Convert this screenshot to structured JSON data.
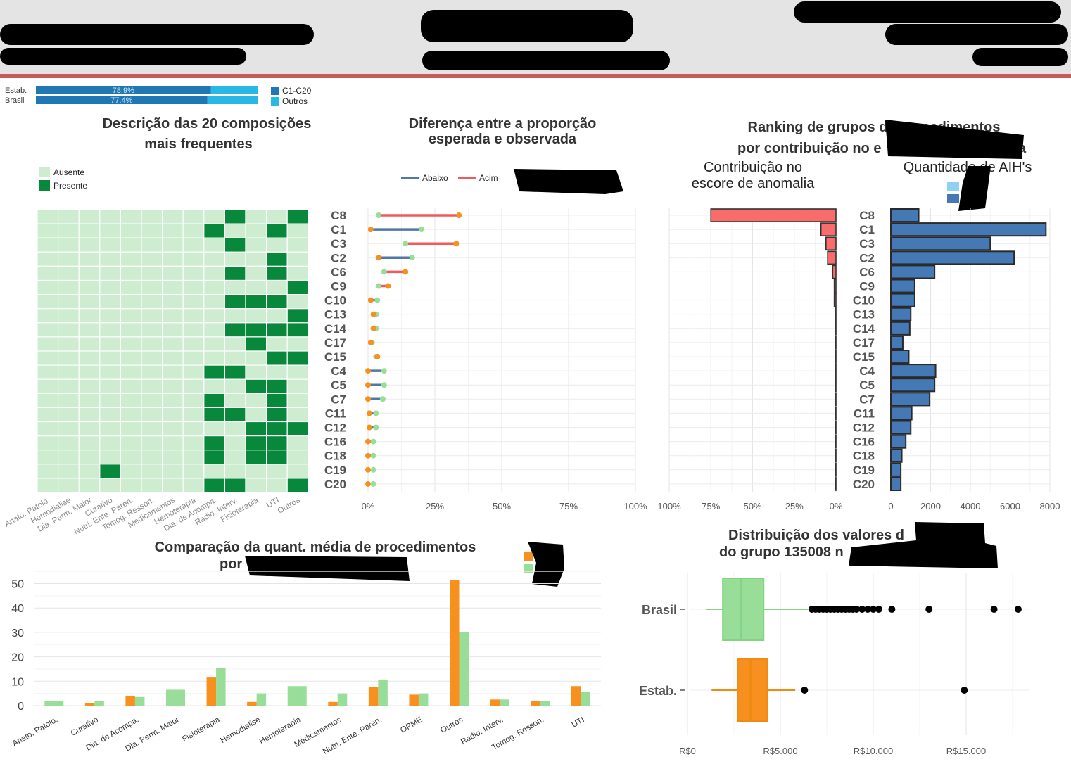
{
  "colors": {
    "header_bg": "#e4e4e4",
    "accent_line": "#c85a5e",
    "estab": "#f7901e",
    "brasil": "#98de98",
    "abaixo": "#4f78a8",
    "acima": "#f15a5a",
    "absent": "#cdecd0",
    "present": "#07883a",
    "share_c1c20": "#1f78b4",
    "share_outros": "#29b8e6",
    "aih_bar": "#4479b5",
    "anomaly_bar": "#f86c6c"
  },
  "share": {
    "rows": [
      {
        "label": "Estab.",
        "value": 78.9,
        "text": "78.9%"
      },
      {
        "label": "Brasil",
        "value": 77.4,
        "text": "77.4%"
      }
    ],
    "legend": [
      "C1-C20",
      "Outros"
    ]
  },
  "compositions": {
    "title": [
      "Descrição das 20 composições",
      "mais frequentes"
    ],
    "legend": [
      "Ausente",
      "Presente"
    ],
    "rows": [
      "C8",
      "C1",
      "C3",
      "C2",
      "C6",
      "C9",
      "C10",
      "C13",
      "C14",
      "C17",
      "C15",
      "C4",
      "C5",
      "C7",
      "C11",
      "C12",
      "C16",
      "C18",
      "C19",
      "C20"
    ],
    "columns": [
      "Anato. Patolo.",
      "Hemodialise",
      "Dia. Perm. Maior",
      "Curativo",
      "Nutri. Ente. Paren.",
      "Tomog. Resson.",
      "Medicamentos",
      "Hemoterapia",
      "Dia. de Acompa.",
      "Radio. Interv.",
      "Fisioterapia",
      "UTI",
      "Outros"
    ],
    "present": [
      [
        9,
        12
      ],
      [
        8,
        11
      ],
      [
        9
      ],
      [
        11
      ],
      [
        9,
        11
      ],
      [
        12
      ],
      [
        9,
        10,
        11
      ],
      [
        12
      ],
      [
        9,
        10,
        11,
        12
      ],
      [
        10
      ],
      [
        11,
        12
      ],
      [
        8,
        9
      ],
      [
        10,
        11
      ],
      [
        8,
        11
      ],
      [
        8,
        9,
        11
      ],
      [
        10,
        11,
        12
      ],
      [
        8,
        10,
        11
      ],
      [
        8,
        10,
        11
      ],
      [
        3
      ],
      [
        8,
        9,
        12
      ]
    ]
  },
  "diff": {
    "title": [
      "Diferença entre a proporção",
      "esperada e observada"
    ],
    "legend": [
      "Abaixo",
      "Acim"
    ],
    "xticks": [
      "0%",
      "25%",
      "50%",
      "75%",
      "100%"
    ],
    "items": [
      {
        "c": "C8",
        "estab": 34,
        "brasil": 4
      },
      {
        "c": "C1",
        "estab": 1,
        "brasil": 20
      },
      {
        "c": "C3",
        "estab": 33,
        "brasil": 14
      },
      {
        "c": "C2",
        "estab": 4,
        "brasil": 16.5
      },
      {
        "c": "C6",
        "estab": 14,
        "brasil": 6
      },
      {
        "c": "C9",
        "estab": 7.5,
        "brasil": 4
      },
      {
        "c": "C10",
        "estab": 1,
        "brasil": 3.5
      },
      {
        "c": "C13",
        "estab": 2,
        "brasil": 3
      },
      {
        "c": "C14",
        "estab": 2,
        "brasil": 3
      },
      {
        "c": "C17",
        "estab": 1,
        "brasil": 1.5
      },
      {
        "c": "C15",
        "estab": 3.5,
        "brasil": 3
      },
      {
        "c": "C4",
        "estab": 0,
        "brasil": 6
      },
      {
        "c": "C5",
        "estab": 0,
        "brasil": 6
      },
      {
        "c": "C7",
        "estab": 0,
        "brasil": 5.5
      },
      {
        "c": "C11",
        "estab": 0.5,
        "brasil": 3
      },
      {
        "c": "C12",
        "estab": 0.5,
        "brasil": 3
      },
      {
        "c": "C16",
        "estab": 0,
        "brasil": 2
      },
      {
        "c": "C18",
        "estab": 0,
        "brasil": 2
      },
      {
        "c": "C19",
        "estab": 0,
        "brasil": 2
      },
      {
        "c": "C20",
        "estab": 0,
        "brasil": 2
      }
    ]
  },
  "ranking": {
    "title": [
      "Ranking de grupos de procedimentos",
      "por contribuição no e",
      "a"
    ],
    "left_label": [
      "Contribuição no",
      "escore de anomalia"
    ],
    "right_label": "Quantidade de AIH's",
    "left_xticks": [
      "100%",
      "75%",
      "50%",
      "25%",
      "0%"
    ],
    "right_xticks": [
      "0",
      "2000",
      "4000",
      "6000",
      "8000"
    ],
    "items": [
      {
        "c": "C8",
        "contrib": 75,
        "aih": 1400
      },
      {
        "c": "C1",
        "contrib": 9,
        "aih": 7800
      },
      {
        "c": "C3",
        "contrib": 6,
        "aih": 5000
      },
      {
        "c": "C2",
        "contrib": 5,
        "aih": 6200
      },
      {
        "c": "C6",
        "contrib": 2,
        "aih": 2200
      },
      {
        "c": "C9",
        "contrib": 1,
        "aih": 1200
      },
      {
        "c": "C10",
        "contrib": 1,
        "aih": 1200
      },
      {
        "c": "C13",
        "contrib": 0.5,
        "aih": 1000
      },
      {
        "c": "C14",
        "contrib": 0.5,
        "aih": 950
      },
      {
        "c": "C17",
        "contrib": 0.3,
        "aih": 600
      },
      {
        "c": "C15",
        "contrib": 0.3,
        "aih": 900
      },
      {
        "c": "C4",
        "contrib": 0.3,
        "aih": 2250
      },
      {
        "c": "C5",
        "contrib": 0.3,
        "aih": 2200
      },
      {
        "c": "C7",
        "contrib": 0.3,
        "aih": 1950
      },
      {
        "c": "C11",
        "contrib": 0.2,
        "aih": 1050
      },
      {
        "c": "C12",
        "contrib": 0.2,
        "aih": 1000
      },
      {
        "c": "C16",
        "contrib": 0.2,
        "aih": 750
      },
      {
        "c": "C18",
        "contrib": 0.2,
        "aih": 550
      },
      {
        "c": "C19",
        "contrib": 0.2,
        "aih": 500
      },
      {
        "c": "C20",
        "contrib": 0.2,
        "aih": 500
      }
    ]
  },
  "comparison": {
    "title": [
      "Comparação da quant. média de procedimentos",
      "por"
    ],
    "yticks": [
      "0",
      "10",
      "20",
      "30",
      "40",
      "50"
    ],
    "categories": [
      "Anato. Patolo.",
      "Curativo",
      "Dia. de Acompa.",
      "Dia. Perm. Maior",
      "Fisioterapia",
      "Hemodialise",
      "Hemoterapia",
      "Medicamentos",
      "Nutri. Ente. Paren.",
      "OPME",
      "Outros",
      "Radio. Interv.",
      "Tomog. Resson.",
      "UTI"
    ],
    "estab": [
      0,
      1,
      4,
      0,
      11.5,
      1.5,
      0,
      1.5,
      7.5,
      4.5,
      51.5,
      2.5,
      2,
      8
    ],
    "brasil": [
      2,
      2,
      3.5,
      6.5,
      15.5,
      5,
      8,
      5,
      10.5,
      5,
      30,
      2.5,
      2,
      5.5
    ]
  },
  "distribution": {
    "title": [
      "Distribuição dos valores d",
      "do grupo 135008 n"
    ],
    "groups": [
      "Brasil",
      "Estab."
    ],
    "xticks": [
      "R$0",
      "R$5.000",
      "R$10.000",
      "R$15.000"
    ],
    "boxes": [
      {
        "name": "Brasil",
        "whisker_low": 1000,
        "q1": 1900,
        "median": 2900,
        "q3": 4100,
        "whisker_high": 6500,
        "outliers": [
          6700,
          6900,
          7100,
          7300,
          7500,
          7700,
          7900,
          8100,
          8300,
          8500,
          8700,
          8900,
          9100,
          9400,
          9700,
          10000,
          10300,
          11000,
          13000,
          16500,
          17800
        ]
      },
      {
        "name": "Estab.",
        "whisker_low": 1300,
        "q1": 2700,
        "median": 3400,
        "q3": 4300,
        "whisker_high": 5800,
        "outliers": [
          6300,
          14900
        ]
      }
    ]
  }
}
